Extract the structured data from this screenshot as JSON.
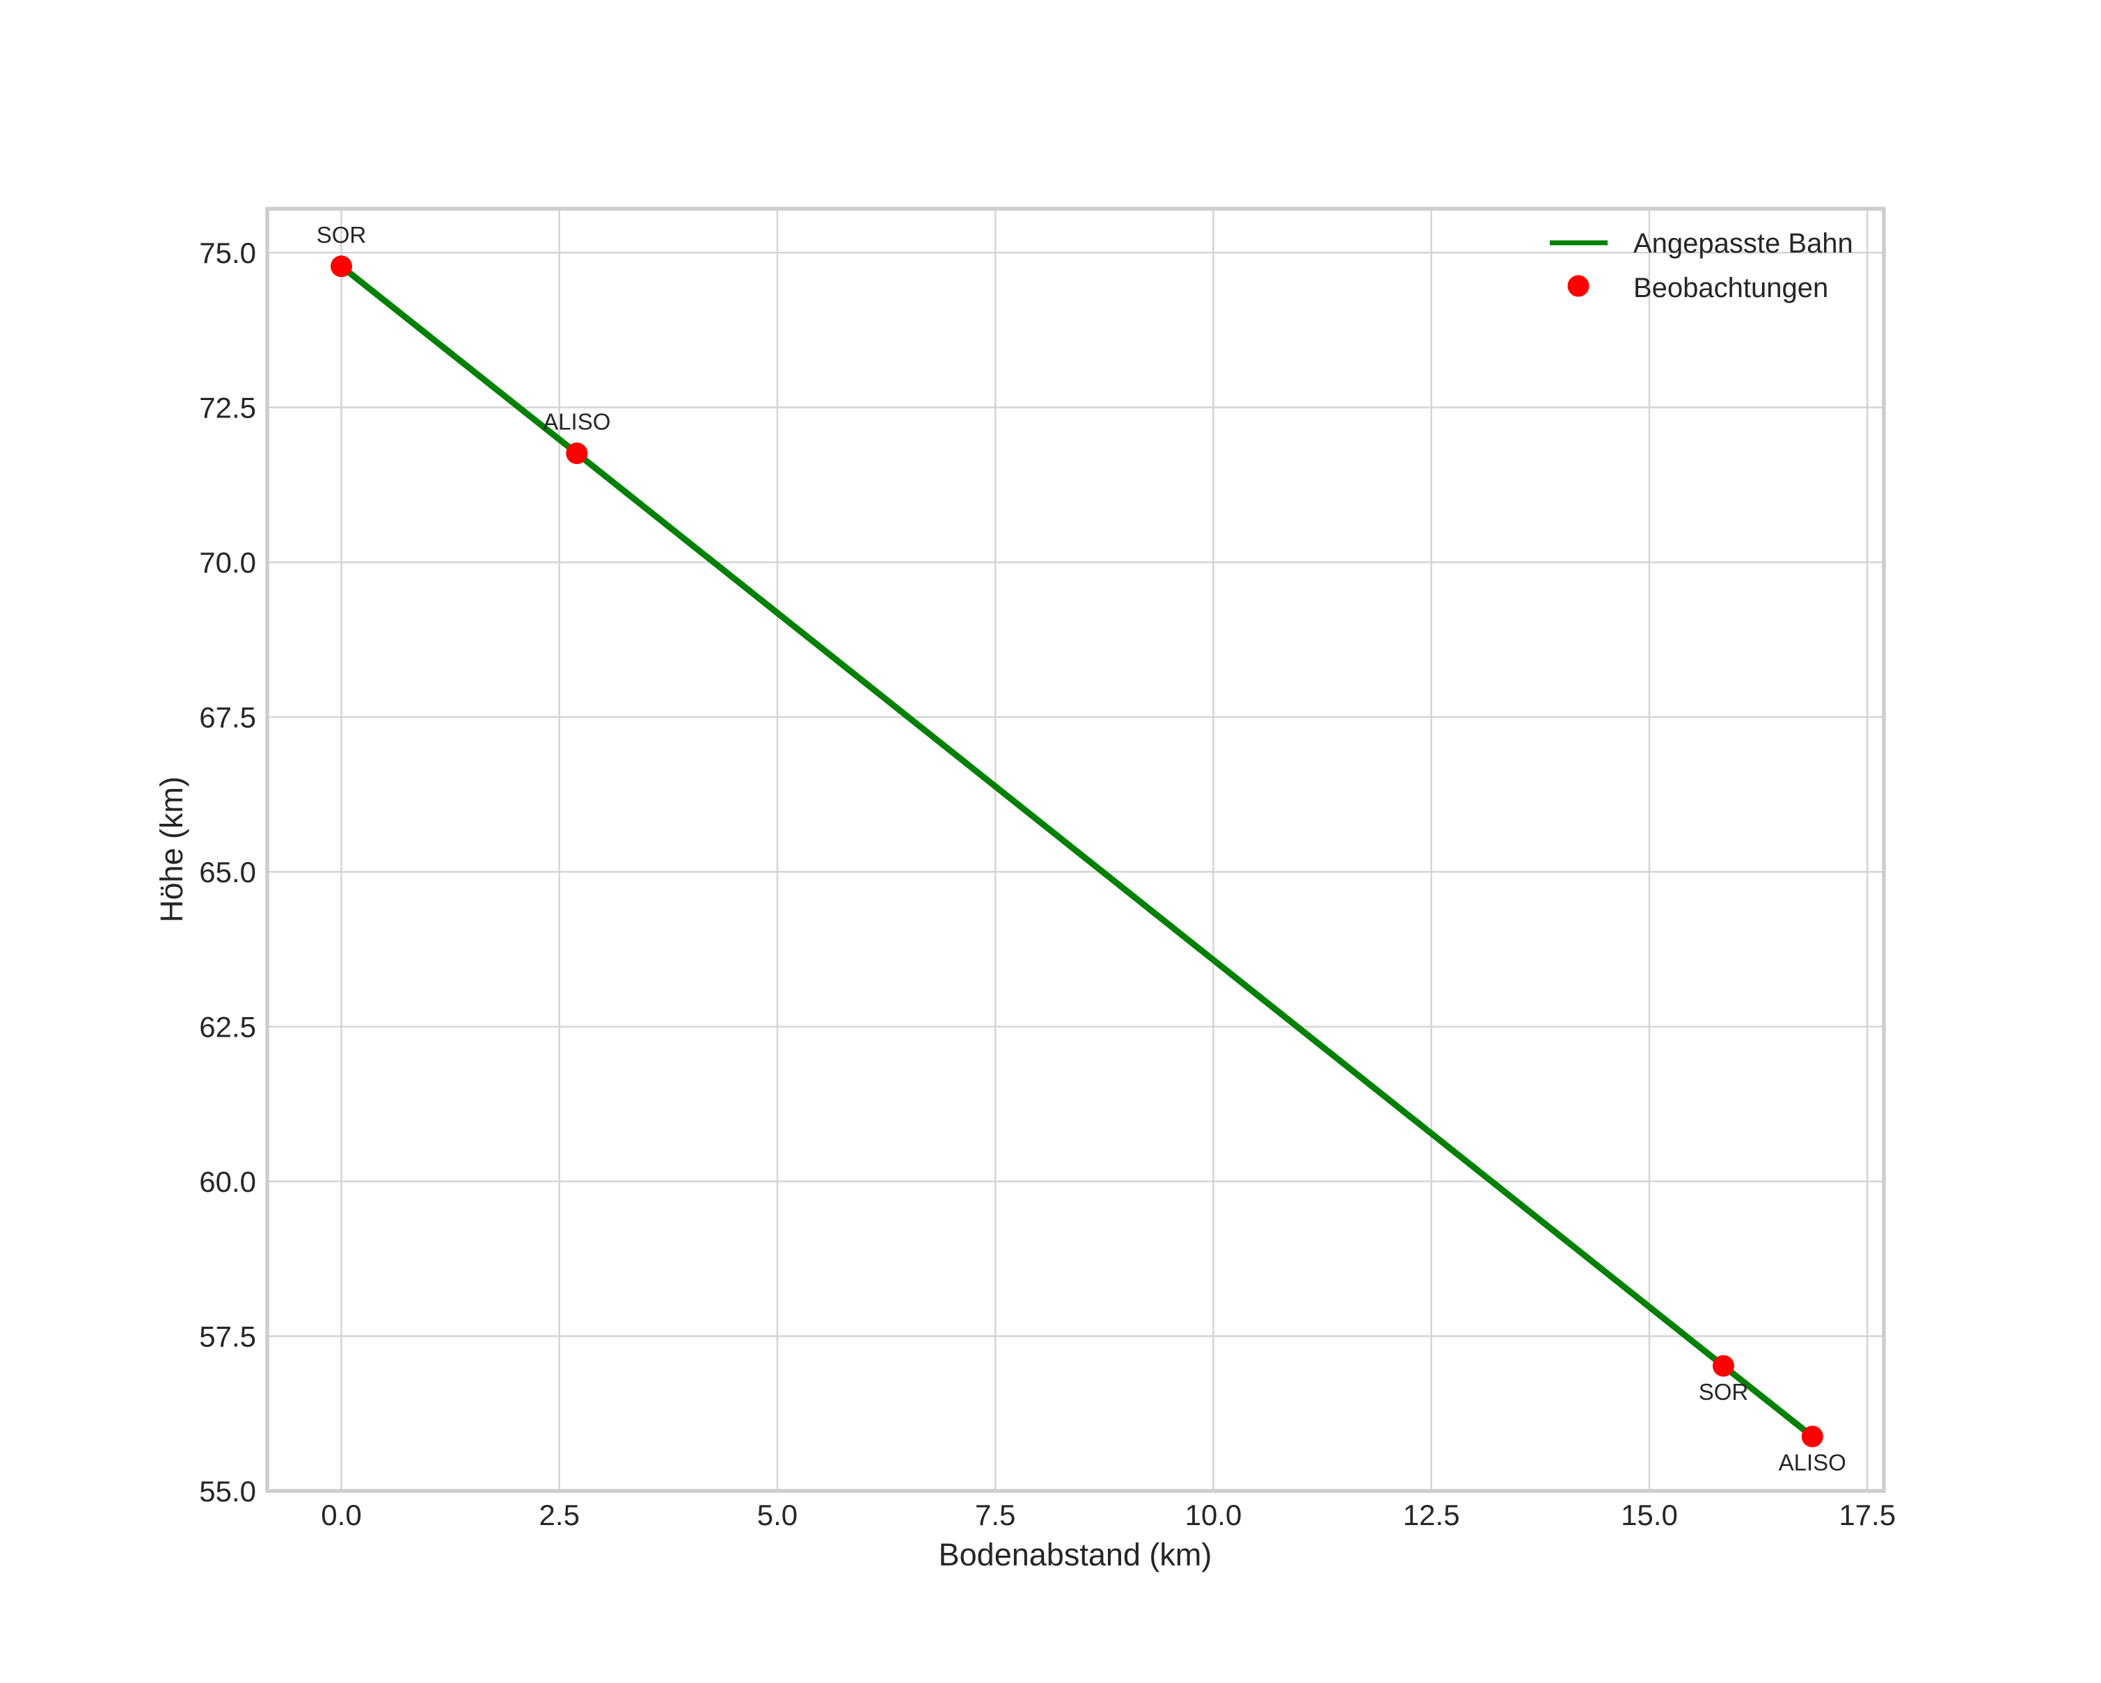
{
  "chart_data": {
    "type": "line",
    "title": "",
    "xlabel": "Bodenabstand (km)",
    "ylabel": "Höhe (km)",
    "xlim": [
      -0.85,
      17.69
    ],
    "ylim": [
      55.0,
      75.71
    ],
    "grid": true,
    "xticks": [
      0.0,
      2.5,
      5.0,
      7.5,
      10.0,
      12.5,
      15.0,
      17.5
    ],
    "xtick_labels": [
      "0.0",
      "2.5",
      "5.0",
      "7.5",
      "10.0",
      "12.5",
      "15.0",
      "17.5"
    ],
    "yticks": [
      55.0,
      57.5,
      60.0,
      62.5,
      65.0,
      67.5,
      70.0,
      72.5,
      75.0
    ],
    "ytick_labels": [
      "55.0",
      "57.5",
      "60.0",
      "62.5",
      "65.0",
      "67.5",
      "70.0",
      "72.5",
      "75.0"
    ],
    "legend": {
      "position": "upper right",
      "entries": [
        {
          "label": "Angepasste Bahn",
          "type": "line",
          "color": "#008000"
        },
        {
          "label": "Beobachtungen",
          "type": "marker",
          "color": "#ff0000"
        }
      ]
    },
    "series": [
      {
        "name": "Angepasste Bahn",
        "type": "line",
        "color": "#008000",
        "x": [
          0.0,
          2.7,
          15.85,
          16.87
        ],
        "y": [
          74.78,
          71.76,
          57.02,
          55.88
        ]
      },
      {
        "name": "Beobachtungen",
        "type": "scatter",
        "color": "#ff0000",
        "marker_radius": 15.5,
        "points": [
          {
            "x": 0.0,
            "y": 74.78,
            "label": "SOR",
            "label_pos": "above"
          },
          {
            "x": 2.7,
            "y": 71.76,
            "label": "ALISO",
            "label_pos": "above"
          },
          {
            "x": 15.85,
            "y": 57.02,
            "label": "SOR",
            "label_pos": "below"
          },
          {
            "x": 16.87,
            "y": 55.88,
            "label": "ALISO",
            "label_pos": "below"
          }
        ]
      }
    ]
  },
  "style_colors": {
    "background": "#ffffff",
    "grid": "#d4d4d4",
    "spine": "#cdcdcd",
    "text": "#262626",
    "line": "#008000",
    "marker": "#ff0000"
  }
}
